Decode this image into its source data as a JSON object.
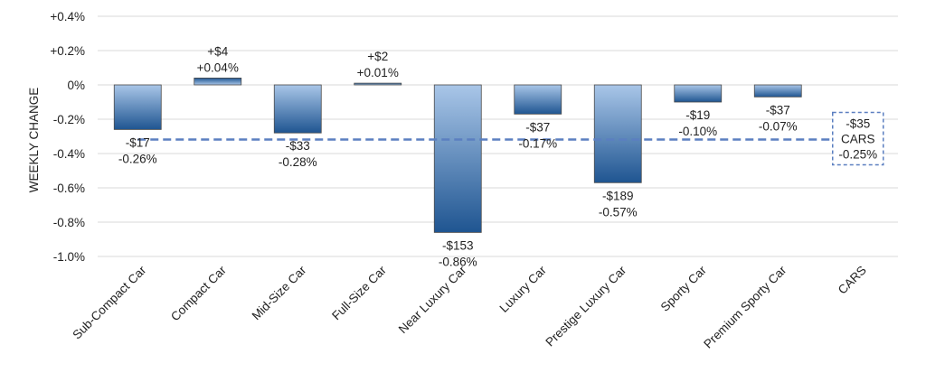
{
  "chart_data": {
    "type": "bar",
    "title": "",
    "xlabel": "",
    "ylabel": "WEEKLY CHANGE",
    "ylim": [
      -1.0,
      0.4
    ],
    "y_ticks": [
      0.4,
      0.2,
      0.0,
      -0.2,
      -0.4,
      -0.6,
      -0.8,
      -1.0
    ],
    "y_tick_labels": [
      "+0.4%",
      "+0.2%",
      "0%",
      "-0.2%",
      "-0.4%",
      "-0.6%",
      "-0.8%",
      "-1.0%"
    ],
    "grid": true,
    "legend": "none",
    "categories": [
      "Sub-Compact Car",
      "Compact Car",
      "Mid-Size Car",
      "Full-Size Car",
      "Near Luxury Car",
      "Luxury Car",
      "Prestige Luxury Car",
      "Sporty Car",
      "Premium Sporty Car",
      "CARS"
    ],
    "values": [
      -0.26,
      0.04,
      -0.28,
      0.01,
      -0.86,
      -0.17,
      -0.57,
      -0.1,
      -0.07,
      null
    ],
    "dollar_labels": [
      "-$17",
      "+$4",
      "-$33",
      "+$2",
      "-$153",
      "-$37",
      "-$189",
      "-$19",
      "-$37",
      null
    ],
    "pct_labels": [
      "-0.26%",
      "+0.04%",
      "-0.28%",
      "+0.01%",
      "-0.86%",
      "-0.17%",
      "-0.57%",
      "-0.10%",
      "-0.07%",
      null
    ],
    "average": {
      "value": -0.25,
      "dollar_label": "-$35",
      "name_label": "CARS",
      "pct_label": "-0.25%"
    },
    "colors": {
      "bar_dark": "#1f5591",
      "bar_light": "#8fb4df",
      "avg_line": "#5b7fc0",
      "grid": "#d9d9d9"
    }
  }
}
